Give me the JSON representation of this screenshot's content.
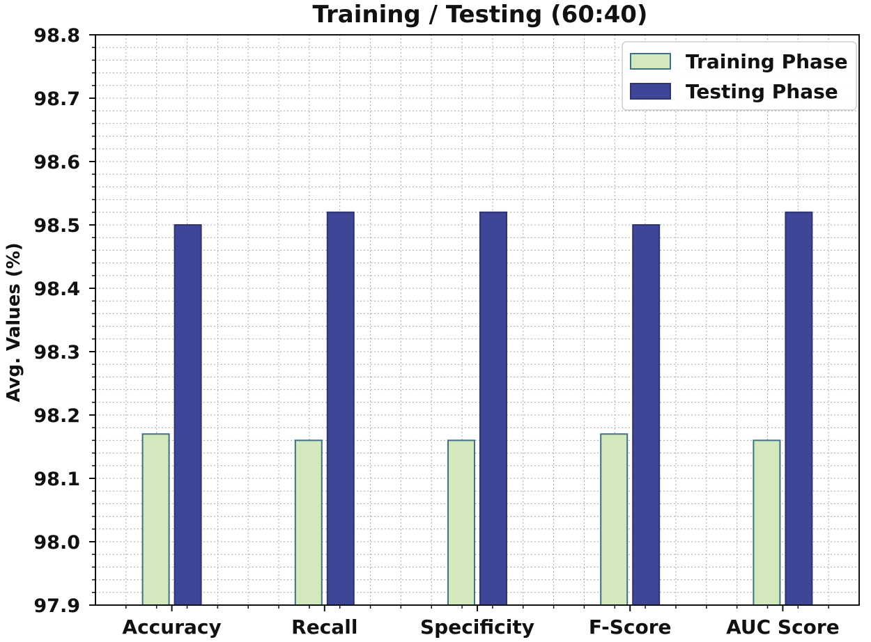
{
  "chart_data": {
    "type": "bar",
    "title": "Training / Testing (60:40)",
    "xlabel": "",
    "ylabel": "Avg. Values (%)",
    "categories": [
      "Accuracy",
      "Recall",
      "Specificity",
      "F-Score",
      "AUC Score"
    ],
    "series": [
      {
        "name": "Training Phase",
        "values": [
          98.17,
          98.16,
          98.16,
          98.17,
          98.16
        ],
        "color": "#d4e8bd",
        "edge": "#3f6f86"
      },
      {
        "name": "Testing Phase",
        "values": [
          98.5,
          98.52,
          98.52,
          98.5,
          98.52
        ],
        "color": "#3f4597",
        "edge": "#2e3470"
      }
    ],
    "ylim": [
      97.9,
      98.8
    ],
    "yticks": [
      "97.9",
      "98.0",
      "98.1",
      "98.2",
      "98.3",
      "98.4",
      "98.5",
      "98.6",
      "98.7",
      "98.8"
    ],
    "grid": true,
    "legend_position": "top-right"
  }
}
